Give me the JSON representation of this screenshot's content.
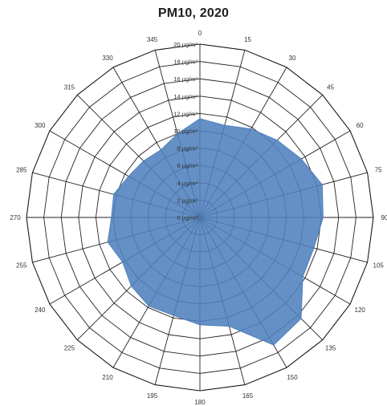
{
  "chart_data": {
    "type": "radar",
    "title": "PM10, 2020",
    "angles": [
      "0",
      "15",
      "30",
      "45",
      "60",
      "75",
      "90",
      "105",
      "120",
      "135",
      "150",
      "165",
      "180",
      "195",
      "210",
      "225",
      "240",
      "255",
      "270",
      "285",
      "300",
      "315",
      "330",
      "345"
    ],
    "radial_tick_labels": [
      "0 µg/m³",
      "2 µg/m³",
      "4 µg/m³",
      "6 µg/m³",
      "8 µg/m³",
      "10 µg/m³",
      "12 µg/m³",
      "14 µg/m³",
      "16 µg/m³",
      "18 µg/m³",
      "20 µg/m³"
    ],
    "rmax": 20,
    "series": [
      {
        "values": [
          11.4,
          11.0,
          11.8,
          12.6,
          13.5,
          14.6,
          14.2,
          13.6,
          13.7,
          16.5,
          17.0,
          13.0,
          12.4,
          11.7,
          11.8,
          11.2,
          10.3,
          11.0,
          10.2,
          10.3,
          9.5,
          9.2,
          9.0,
          10.0
        ],
        "color": "#4f81bd"
      }
    ]
  }
}
